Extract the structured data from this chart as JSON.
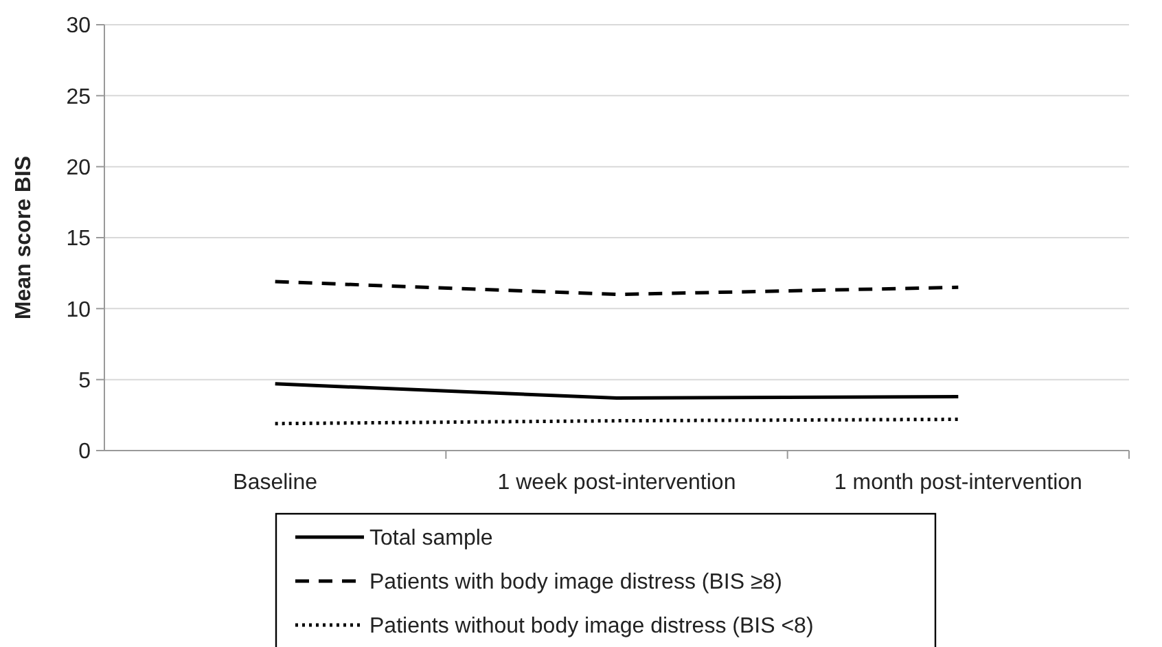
{
  "chart_data": {
    "type": "line",
    "ylabel": "Mean score BIS",
    "categories": [
      "Baseline",
      "1 week post-intervention",
      "1 month post-intervention"
    ],
    "series": [
      {
        "name": "Total sample",
        "color": "#000000",
        "line_style": "solid",
        "values": [
          4.7,
          3.7,
          3.8
        ]
      },
      {
        "name": "Patients with body image distress (BIS ≥8)",
        "color": "#000000",
        "line_style": "dashed",
        "values": [
          11.9,
          11.0,
          11.5
        ]
      },
      {
        "name": "Patients without body image distress (BIS <8)",
        "color": "#000000",
        "line_style": "dotted",
        "values": [
          1.9,
          2.1,
          2.2
        ]
      }
    ],
    "ylim": [
      0,
      30
    ],
    "yticks": [
      0,
      5,
      10,
      15,
      20,
      25,
      30
    ],
    "grid": "y",
    "legend": "bottom",
    "marker": "none"
  }
}
